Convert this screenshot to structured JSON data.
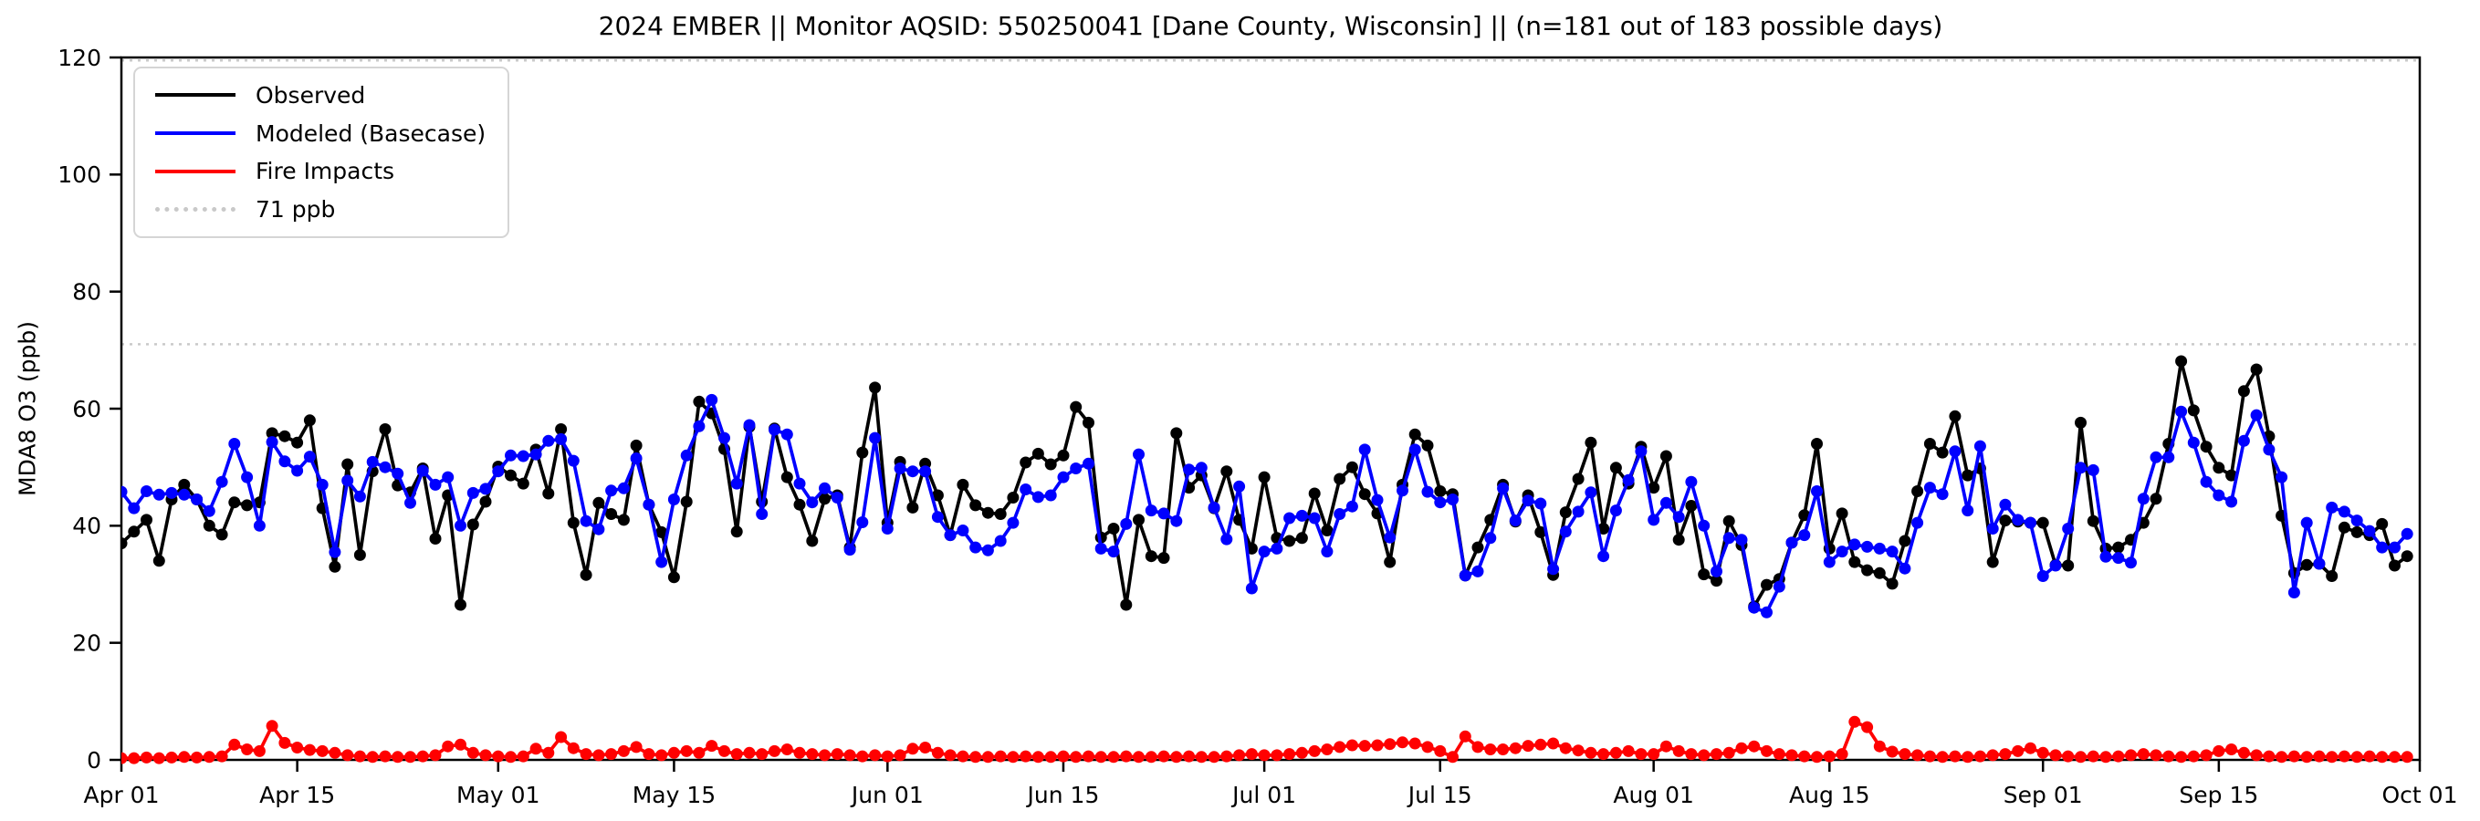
{
  "figure": {
    "title": "2024 EMBER || Monitor AQSID: 550250041 [Dane County, Wisconsin] || (n=181 out of 183 possible days)"
  },
  "chart_data": {
    "type": "line",
    "title": "2024 EMBER || Monitor AQSID: 550250041 [Dane County, Wisconsin] || (n=181 out of 183 possible days)",
    "xlabel": "",
    "ylabel": "MDA8 O3 (ppb)",
    "ylim": [
      0,
      120
    ],
    "y_ticks": [
      0,
      20,
      40,
      60,
      80,
      100,
      120
    ],
    "xlim_days": [
      0,
      183
    ],
    "x_start": "Apr 01",
    "x_end": "Oct 01",
    "x_ticks": [
      {
        "label": "Apr 01",
        "day": 0
      },
      {
        "label": "Apr 15",
        "day": 14
      },
      {
        "label": "May 01",
        "day": 30
      },
      {
        "label": "May 15",
        "day": 44
      },
      {
        "label": "Jun 01",
        "day": 61
      },
      {
        "label": "Jun 15",
        "day": 75
      },
      {
        "label": "Jul 01",
        "day": 91
      },
      {
        "label": "Jul 15",
        "day": 105
      },
      {
        "label": "Aug 01",
        "day": 122
      },
      {
        "label": "Aug 15",
        "day": 136
      },
      {
        "label": "Sep 01",
        "day": 153
      },
      {
        "label": "Sep 15",
        "day": 167
      },
      {
        "label": "Oct 01",
        "day": 183
      }
    ],
    "grid": false,
    "legend_position": "upper left",
    "ref_lines": [
      {
        "label": "71 ppb",
        "value": 71,
        "color": "#c9c9c9",
        "style": "dotted"
      },
      {
        "label": "",
        "value": 119.5,
        "color": "#c9c9c9",
        "style": "dotted"
      }
    ],
    "series": [
      {
        "name": "Observed",
        "color": "#000000",
        "values": [
          37,
          39,
          41,
          34,
          44.5,
          47,
          44.5,
          40,
          38.5,
          44,
          43.5,
          44,
          55.8,
          55.3,
          54.2,
          58,
          43,
          33,
          50.5,
          35,
          49.3,
          56.5,
          46.9,
          45.7,
          49.8,
          37.8,
          45.2,
          26.5,
          40.2,
          44.1,
          50.1,
          48.6,
          47.2,
          53,
          45.5,
          56.5,
          40.5,
          31.6,
          43.9,
          42,
          41,
          53.7,
          43.6,
          38.9,
          31.2,
          44.1,
          61.2,
          59.2,
          53.1,
          39,
          56.9,
          44.1,
          56.6,
          48.3,
          43.6,
          37.4,
          44.6,
          45.2,
          36.3,
          52.5,
          63.6,
          40.5,
          50.9,
          43.1,
          50.6,
          45.2,
          38.4,
          47,
          43.5,
          42.2,
          42,
          44.8,
          50.8,
          52.3,
          50.5,
          52,
          60.3,
          57.6,
          38,
          39.5,
          26.5,
          41,
          34.8,
          34.5,
          55.8,
          46.5,
          48.6,
          43,
          49.3,
          41,
          36.1,
          48.3,
          37.9,
          37.4,
          37.9,
          45.5,
          39.2,
          48,
          50,
          45.4,
          42.1,
          33.8,
          47,
          55.6,
          53.7,
          45.9,
          45.4,
          31.5,
          36.3,
          41,
          47,
          40.7,
          45.2,
          38.9,
          31.6,
          42.3,
          48,
          54.2,
          39.5,
          49.9,
          47.2,
          53.5,
          46.5,
          51.9,
          37.6,
          43.4,
          31.7,
          30.6,
          40.8,
          36.7,
          26.2,
          29.9,
          30.9,
          37.1,
          41.8,
          54,
          36.1,
          42.1,
          33.8,
          32.4,
          31.9,
          30.1,
          37.4,
          45.9,
          54,
          52.5,
          58.7,
          48.6,
          49.8,
          33.8,
          40.9,
          40.7,
          40.5,
          40.5,
          33.3,
          33.2,
          57.6,
          40.8,
          36.1,
          36.3,
          37.6,
          40.5,
          44.6,
          54,
          68.1,
          59.7,
          53.5,
          49.9,
          48.6,
          63,
          66.7,
          55.3,
          41.7,
          31.9,
          33.3,
          33.5,
          31.4,
          39.7,
          38.9,
          38.4,
          40.3,
          33.2,
          34.8
        ]
      },
      {
        "name": "Modeled (Basecase)",
        "color": "#0000ff",
        "values": [
          45.8,
          43,
          45.9,
          45.3,
          45.6,
          45.3,
          44.5,
          42.5,
          47.5,
          54,
          48.3,
          40,
          54.3,
          51,
          49.4,
          51.8,
          47,
          35.5,
          47.7,
          45,
          50.9,
          50,
          48.9,
          43.9,
          49.4,
          47,
          48.3,
          40,
          45.6,
          46.3,
          49.3,
          52,
          51.9,
          52.2,
          54.5,
          54.8,
          51.1,
          40.8,
          39.4,
          46,
          46.4,
          51.5,
          43.6,
          33.8,
          44.5,
          52,
          57,
          61.5,
          55,
          47.2,
          57.2,
          42,
          56.4,
          55.6,
          47.2,
          44,
          46.4,
          44.8,
          35.9,
          40.6,
          55,
          39.5,
          49.8,
          49.3,
          49.3,
          41.5,
          38.4,
          39.2,
          36.3,
          35.8,
          37.4,
          40.5,
          46.2,
          44.9,
          45.2,
          48.3,
          49.8,
          50.6,
          36.1,
          35.6,
          40.3,
          52.2,
          42.6,
          42.1,
          40.8,
          49.6,
          49.9,
          43.1,
          37.7,
          46.7,
          29.3,
          35.6,
          36.1,
          41.3,
          41.7,
          41.3,
          35.6,
          42,
          43.3,
          53,
          44.4,
          38,
          46,
          53,
          45.8,
          44,
          44.5,
          31.5,
          32.2,
          37.9,
          46.4,
          40.9,
          44.3,
          43.8,
          32.6,
          39,
          42.4,
          45.7,
          34.8,
          42.6,
          47.8,
          52.7,
          41,
          43.9,
          41.5,
          47.5,
          40,
          32.2,
          37.9,
          37.6,
          26,
          25.2,
          29.6,
          37.1,
          38.4,
          45.9,
          33.8,
          35.6,
          36.8,
          36.4,
          36.1,
          35.6,
          32.7,
          40.5,
          46.5,
          45.4,
          52.7,
          42.6,
          53.6,
          39.5,
          43.6,
          41,
          40.5,
          31.4,
          33.2,
          39.5,
          49.9,
          49.5,
          34.7,
          34.5,
          33.7,
          44.6,
          51.7,
          51.7,
          59.5,
          54.2,
          47.5,
          45.2,
          44.1,
          54.5,
          58.9,
          53,
          48.3,
          28.6,
          40.5,
          33.5,
          43.1,
          42.4,
          40.9,
          39.1,
          36.3,
          36.3,
          38.6
        ]
      },
      {
        "name": "Fire Impacts",
        "color": "#ff0000",
        "values": [
          0.3,
          0.3,
          0.4,
          0.3,
          0.4,
          0.5,
          0.4,
          0.5,
          0.6,
          2.6,
          1.8,
          1.5,
          5.8,
          2.9,
          2.1,
          1.7,
          1.5,
          1.2,
          0.8,
          0.6,
          0.5,
          0.6,
          0.5,
          0.5,
          0.6,
          0.8,
          2.3,
          2.6,
          1.2,
          0.8,
          0.6,
          0.5,
          0.6,
          1.9,
          1.2,
          3.9,
          2,
          1,
          0.8,
          1,
          1.5,
          2.2,
          1,
          0.8,
          1.2,
          1.5,
          1.2,
          2.4,
          1.5,
          1,
          1.2,
          1,
          1.5,
          1.8,
          1.2,
          1,
          0.8,
          1,
          0.8,
          0.6,
          0.8,
          0.6,
          0.8,
          1.9,
          2.1,
          1.2,
          0.8,
          0.6,
          0.5,
          0.5,
          0.6,
          0.5,
          0.6,
          0.5,
          0.5,
          0.6,
          0.5,
          0.6,
          0.5,
          0.5,
          0.6,
          0.5,
          0.5,
          0.6,
          0.5,
          0.6,
          0.5,
          0.5,
          0.6,
          0.8,
          1,
          0.8,
          0.8,
          1,
          1.2,
          1.5,
          1.8,
          2.2,
          2.5,
          2.4,
          2.5,
          2.7,
          3,
          2.8,
          2.2,
          1.5,
          0.5,
          4,
          2.2,
          1.8,
          1.8,
          2,
          2.4,
          2.6,
          2.8,
          2,
          1.6,
          1.2,
          1,
          1.2,
          1.5,
          1,
          1,
          2.3,
          1.5,
          1,
          0.8,
          1,
          1.2,
          2,
          2.3,
          1.5,
          1,
          0.8,
          0.6,
          0.5,
          0.6,
          1,
          6.5,
          5.6,
          2.3,
          1.4,
          1,
          0.8,
          0.6,
          0.5,
          0.6,
          0.5,
          0.6,
          0.8,
          1,
          1.5,
          2,
          1.2,
          0.8,
          0.6,
          0.5,
          0.6,
          0.5,
          0.6,
          0.8,
          1,
          0.8,
          0.6,
          0.5,
          0.6,
          0.8,
          1.5,
          1.8,
          1.2,
          0.8,
          0.6,
          0.5,
          0.6,
          0.5,
          0.6,
          0.5,
          0.6,
          0.5,
          0.6,
          0.5,
          0.5,
          0.5
        ]
      }
    ]
  }
}
